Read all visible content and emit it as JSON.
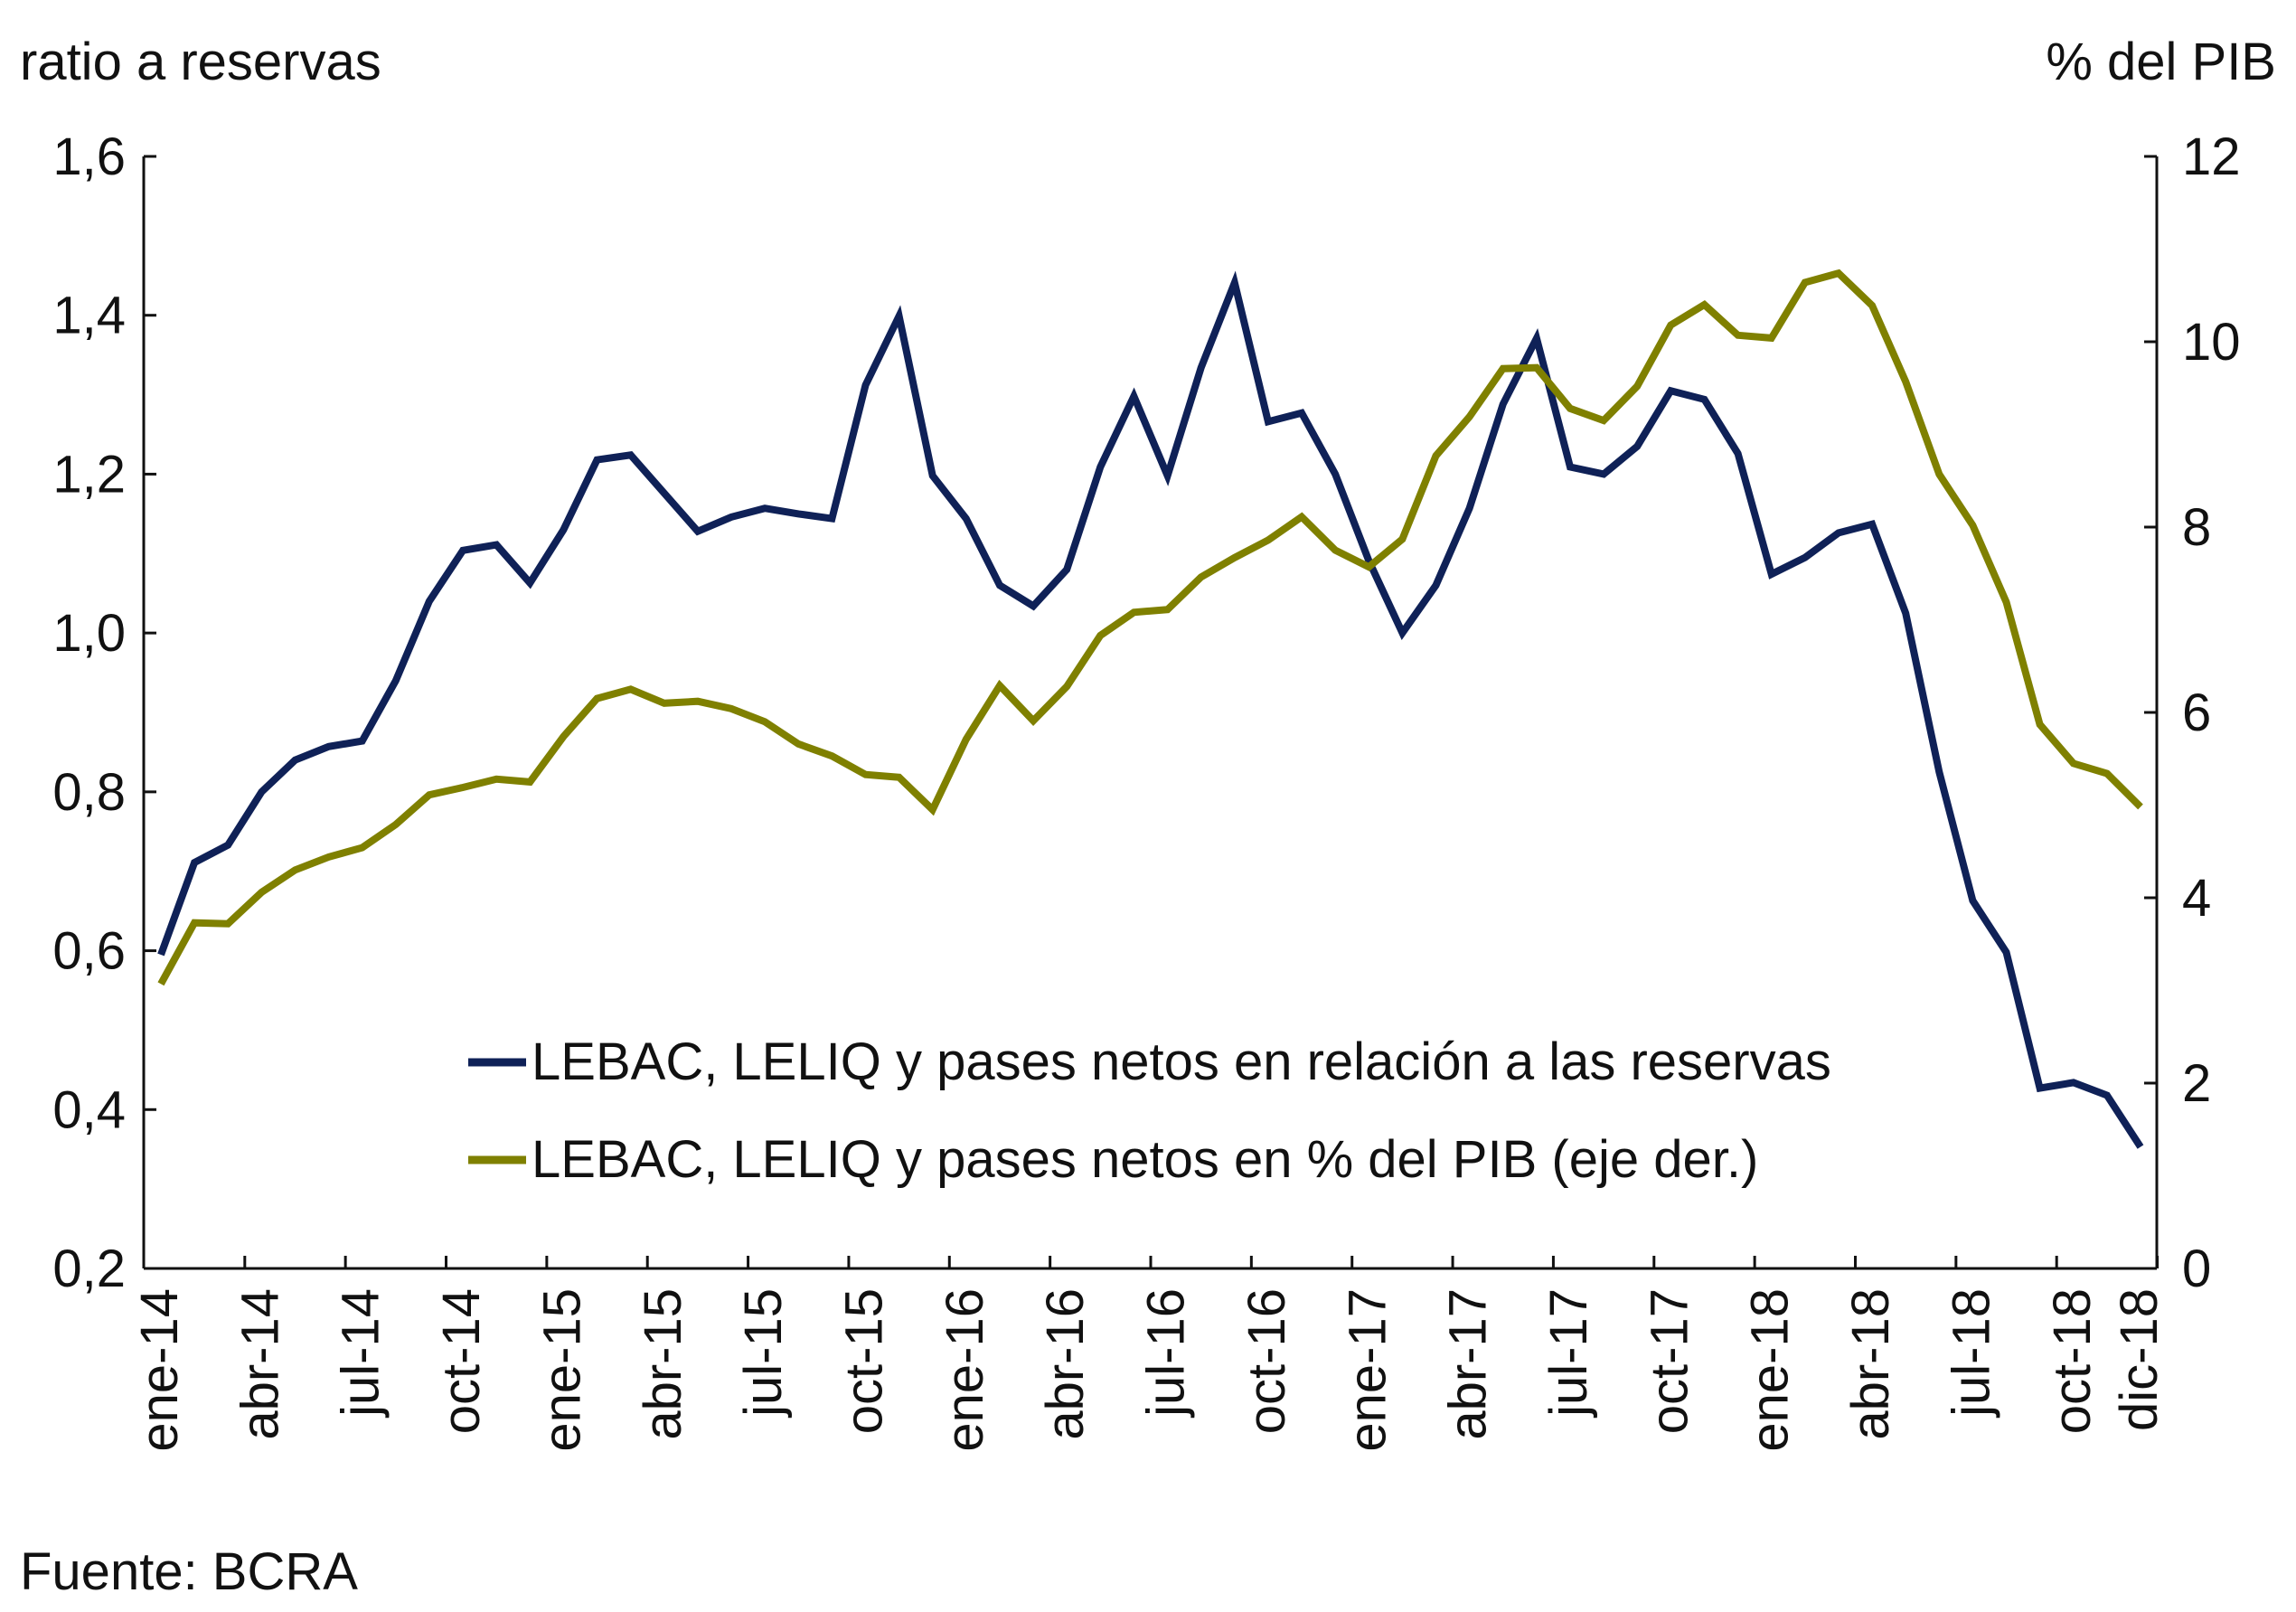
{
  "chart_data": {
    "type": "line",
    "left_axis_title": "ratio a reservas",
    "right_axis_title": "% del PIB",
    "left_ylim": [
      0.2,
      1.6
    ],
    "left_ticks": [
      "0,2",
      "0,4",
      "0,6",
      "0,8",
      "1,0",
      "1,2",
      "1,4",
      "1,6"
    ],
    "left_tick_values": [
      0.2,
      0.4,
      0.6,
      0.8,
      1.0,
      1.2,
      1.4,
      1.6
    ],
    "right_ylim": [
      0,
      12
    ],
    "right_ticks": [
      "0",
      "2",
      "4",
      "6",
      "8",
      "10",
      "12"
    ],
    "right_tick_values": [
      0,
      2,
      4,
      6,
      8,
      10,
      12
    ],
    "x_tick_labels": [
      "ene-14",
      "abr-14",
      "jul-14",
      "oct-14",
      "ene-15",
      "abr-15",
      "jul-15",
      "oct-15",
      "ene-16",
      "abr-16",
      "jul-16",
      "oct-16",
      "ene-17",
      "abr-17",
      "jul-17",
      "oct-17",
      "ene-18",
      "abr-18",
      "jul-18",
      "oct-18",
      "dic-18"
    ],
    "x_tick_months_index": [
      0,
      3,
      6,
      9,
      12,
      15,
      18,
      21,
      24,
      27,
      30,
      33,
      36,
      39,
      42,
      45,
      48,
      51,
      54,
      57,
      59
    ],
    "x_start": "ene-14",
    "x_end": "dic-18",
    "grid": false,
    "legend_position": "bottom-center",
    "series": [
      {
        "name": "LEBAC, LELIQ y pases netos en relación a las reservas",
        "axis": "left",
        "color": "#0f2157",
        "values": [
          0.595,
          0.711,
          0.733,
          0.8,
          0.84,
          0.857,
          0.864,
          0.94,
          1.04,
          1.104,
          1.111,
          1.063,
          1.13,
          1.218,
          1.224,
          1.176,
          1.128,
          1.146,
          1.157,
          1.15,
          1.144,
          1.312,
          1.399,
          1.198,
          1.144,
          1.06,
          1.034,
          1.08,
          1.209,
          1.298,
          1.198,
          1.334,
          1.441,
          1.266,
          1.277,
          1.2,
          1.091,
          1.0,
          1.06,
          1.157,
          1.288,
          1.371,
          1.209,
          1.2,
          1.235,
          1.305,
          1.294,
          1.226,
          1.074,
          1.095,
          1.126,
          1.137,
          1.025,
          0.825,
          0.663,
          0.598,
          0.427,
          0.434,
          0.418,
          0.353
        ]
      },
      {
        "name": "LEBAC, LELIQ y pases netos en % del PIB (eje der.)",
        "axis": "right",
        "color": "#7f8000",
        "values": [
          3.07,
          3.73,
          3.72,
          4.06,
          4.3,
          4.44,
          4.54,
          4.79,
          5.11,
          5.19,
          5.28,
          5.25,
          5.74,
          6.15,
          6.25,
          6.1,
          6.12,
          6.04,
          5.9,
          5.66,
          5.53,
          5.33,
          5.3,
          4.95,
          5.71,
          6.29,
          5.91,
          6.28,
          6.83,
          7.08,
          7.11,
          7.46,
          7.67,
          7.86,
          8.11,
          7.75,
          7.57,
          7.87,
          8.77,
          9.19,
          9.71,
          9.72,
          9.28,
          9.15,
          9.52,
          10.18,
          10.4,
          10.07,
          10.04,
          10.64,
          10.74,
          10.39,
          9.57,
          8.57,
          8.02,
          7.19,
          5.87,
          5.45,
          5.34,
          4.98
        ]
      }
    ]
  },
  "source": "Fuente: BCRA"
}
